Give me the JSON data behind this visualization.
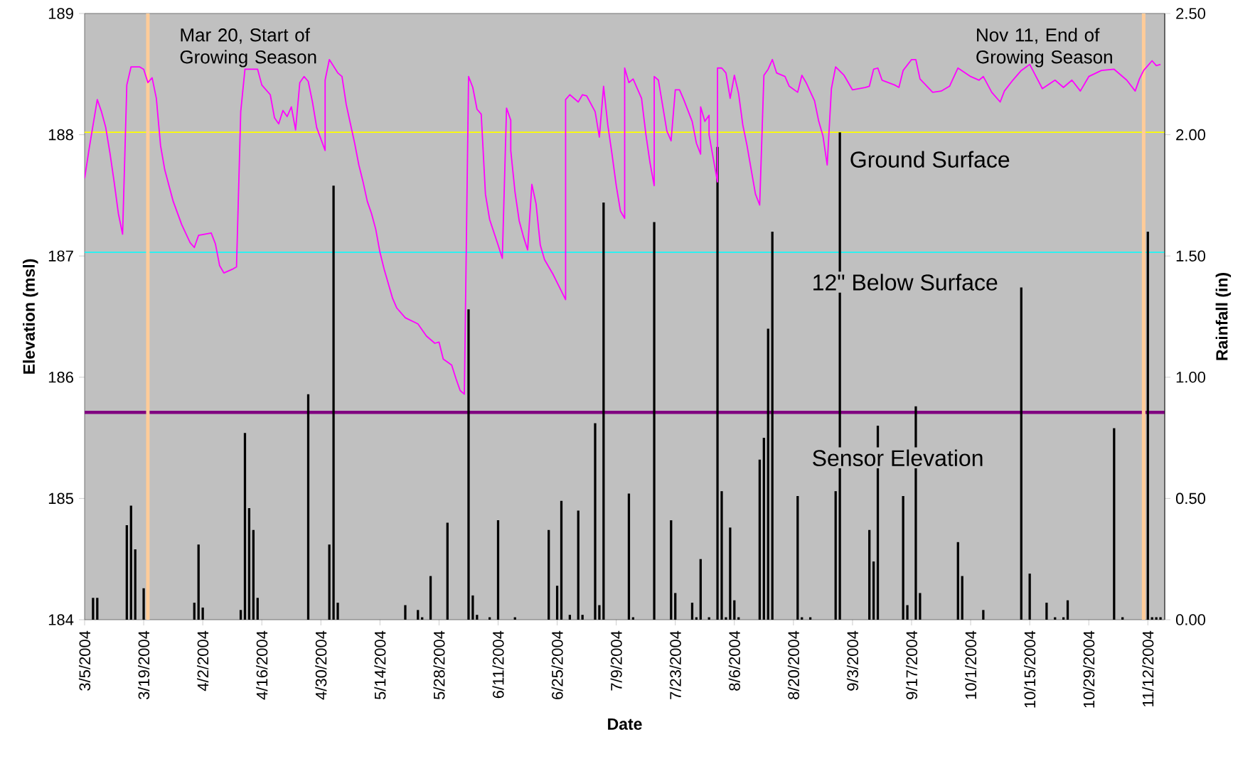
{
  "chart_data": {
    "type": "line",
    "xlabel": "Date",
    "ylabel": "Elevation (msl)",
    "y2label": "Rainfall (in)",
    "xlim": [
      "2004-03-05",
      "2004-11-16"
    ],
    "xticks": [
      {
        "value": "2004-03-05",
        "label": "3/5/2004"
      },
      {
        "value": "2004-03-19",
        "label": "3/19/2004"
      },
      {
        "value": "2004-04-02",
        "label": "4/2/2004"
      },
      {
        "value": "2004-04-16",
        "label": "4/16/2004"
      },
      {
        "value": "2004-04-30",
        "label": "4/30/2004"
      },
      {
        "value": "2004-05-14",
        "label": "5/14/2004"
      },
      {
        "value": "2004-05-28",
        "label": "5/28/2004"
      },
      {
        "value": "2004-06-11",
        "label": "6/11/2004"
      },
      {
        "value": "2004-06-25",
        "label": "6/25/2004"
      },
      {
        "value": "2004-07-09",
        "label": "7/9/2004"
      },
      {
        "value": "2004-07-23",
        "label": "7/23/2004"
      },
      {
        "value": "2004-08-06",
        "label": "8/6/2004"
      },
      {
        "value": "2004-08-20",
        "label": "8/20/2004"
      },
      {
        "value": "2004-09-03",
        "label": "9/3/2004"
      },
      {
        "value": "2004-09-17",
        "label": "9/17/2004"
      },
      {
        "value": "2004-10-01",
        "label": "10/1/2004"
      },
      {
        "value": "2004-10-15",
        "label": "10/15/2004"
      },
      {
        "value": "2004-10-29",
        "label": "10/29/2004"
      },
      {
        "value": "2004-11-12",
        "label": "11/12/2004"
      }
    ],
    "ylim": [
      184,
      189
    ],
    "yticks": [
      184,
      185,
      186,
      187,
      188,
      189
    ],
    "y2lim": [
      0,
      2.5
    ],
    "y2ticks": [
      {
        "value": 0,
        "label": "0.00"
      },
      {
        "value": 0.5,
        "label": "0.50"
      },
      {
        "value": 1,
        "label": "1.00"
      },
      {
        "value": 1.5,
        "label": "1.50"
      },
      {
        "value": 2,
        "label": "2.00"
      },
      {
        "value": 2.5,
        "label": "2.50"
      }
    ],
    "series": [
      {
        "color": "#ff00ff",
        "x": [
          "2004-03-05",
          "2004-03-06",
          "2004-03-07",
          "2004-03-08",
          "2004-03-09",
          "2004-03-10",
          "2004-03-11",
          "2004-03-12",
          "2004-03-13",
          "2004-03-14",
          "2004-03-15",
          "2004-03-16",
          "2004-03-18",
          "2004-03-19",
          "2004-03-20",
          "2004-03-21",
          "2004-03-22",
          "2004-03-23",
          "2004-03-24",
          "2004-03-25",
          "2004-03-26",
          "2004-03-28",
          "2004-03-30",
          "2004-03-31",
          "2004-04-01",
          "2004-04-04",
          "2004-04-05",
          "2004-04-06",
          "2004-04-07",
          "2004-04-09",
          "2004-04-10",
          "2004-04-11",
          "2004-04-12",
          "2004-04-15",
          "2004-04-16",
          "2004-04-18",
          "2004-04-19",
          "2004-04-20",
          "2004-04-21",
          "2004-04-22",
          "2004-04-23",
          "2004-04-24",
          "2004-04-25",
          "2004-04-26",
          "2004-04-27",
          "2004-04-28",
          "2004-04-29",
          "2004-05-01",
          "2004-05-01",
          "2004-05-02",
          "2004-05-04",
          "2004-05-05",
          "2004-05-06",
          "2004-05-07",
          "2004-05-08",
          "2004-05-09",
          "2004-05-10",
          "2004-05-11",
          "2004-05-12",
          "2004-05-13",
          "2004-05-14",
          "2004-05-15",
          "2004-05-16",
          "2004-05-17",
          "2004-05-18",
          "2004-05-20",
          "2004-05-23",
          "2004-05-25",
          "2004-05-27",
          "2004-05-28",
          "2004-05-29",
          "2004-05-31",
          "2004-06-01",
          "2004-06-02",
          "2004-06-03",
          "2004-06-04",
          "2004-06-05",
          "2004-06-06",
          "2004-06-07",
          "2004-06-08",
          "2004-06-09",
          "2004-06-11",
          "2004-06-12",
          "2004-06-13",
          "2004-06-14",
          "2004-06-14",
          "2004-06-15",
          "2004-06-16",
          "2004-06-17",
          "2004-06-18",
          "2004-06-19",
          "2004-06-20",
          "2004-06-21",
          "2004-06-22",
          "2004-06-24",
          "2004-06-26",
          "2004-06-27",
          "2004-06-27",
          "2004-06-28",
          "2004-06-30",
          "2004-07-01",
          "2004-07-02",
          "2004-07-04",
          "2004-07-05",
          "2004-07-06",
          "2004-07-07",
          "2004-07-08",
          "2004-07-09",
          "2004-07-10",
          "2004-07-11",
          "2004-07-11",
          "2004-07-12",
          "2004-07-13",
          "2004-07-15",
          "2004-07-16",
          "2004-07-17",
          "2004-07-18",
          "2004-07-18",
          "2004-07-19",
          "2004-07-20",
          "2004-07-21",
          "2004-07-22",
          "2004-07-23",
          "2004-07-24",
          "2004-07-25",
          "2004-07-27",
          "2004-07-28",
          "2004-07-29",
          "2004-07-29",
          "2004-07-30",
          "2004-07-31",
          "2004-07-31",
          "2004-08-02",
          "2004-08-02",
          "2004-08-03",
          "2004-08-04",
          "2004-08-05",
          "2004-08-06",
          "2004-08-07",
          "2004-08-08",
          "2004-08-09",
          "2004-08-10",
          "2004-08-11",
          "2004-08-12",
          "2004-08-13",
          "2004-08-14",
          "2004-08-15",
          "2004-08-16",
          "2004-08-18",
          "2004-08-19",
          "2004-08-21",
          "2004-08-22",
          "2004-08-23",
          "2004-08-25",
          "2004-08-26",
          "2004-08-27",
          "2004-08-28",
          "2004-08-29",
          "2004-08-30",
          "2004-09-01",
          "2004-09-03",
          "2004-09-06",
          "2004-09-07",
          "2004-09-08",
          "2004-09-09",
          "2004-09-10",
          "2004-09-13",
          "2004-09-14",
          "2004-09-15",
          "2004-09-17",
          "2004-09-18",
          "2004-09-19",
          "2004-09-22",
          "2004-09-24",
          "2004-09-26",
          "2004-09-28",
          "2004-10-01",
          "2004-10-03",
          "2004-10-04",
          "2004-10-06",
          "2004-10-08",
          "2004-10-09",
          "2004-10-11",
          "2004-10-13",
          "2004-10-15",
          "2004-10-18",
          "2004-10-21",
          "2004-10-23",
          "2004-10-25",
          "2004-10-27",
          "2004-10-29",
          "2004-11-01",
          "2004-11-04",
          "2004-11-07",
          "2004-11-09",
          "2004-11-10",
          "2004-11-11",
          "2004-11-13",
          "2004-11-14",
          "2004-11-15"
        ],
        "values": [
          187.64,
          187.87,
          188.08,
          188.29,
          188.19,
          188.06,
          187.85,
          187.61,
          187.35,
          187.18,
          188.41,
          188.56,
          188.56,
          188.54,
          188.43,
          188.47,
          188.3,
          187.91,
          187.71,
          187.58,
          187.45,
          187.26,
          187.11,
          187.07,
          187.17,
          187.19,
          187.1,
          186.92,
          186.86,
          186.89,
          186.91,
          188.19,
          188.54,
          188.54,
          188.41,
          188.33,
          188.14,
          188.09,
          188.2,
          188.15,
          188.23,
          188.04,
          188.43,
          188.48,
          188.44,
          188.27,
          188.06,
          187.87,
          188.45,
          188.62,
          188.51,
          188.48,
          188.25,
          188.09,
          187.93,
          187.75,
          187.61,
          187.45,
          187.35,
          187.22,
          187.03,
          186.89,
          186.77,
          186.65,
          186.57,
          186.49,
          186.44,
          186.34,
          186.28,
          186.29,
          186.15,
          186.1,
          185.99,
          185.89,
          185.86,
          188.48,
          188.39,
          188.21,
          188.17,
          187.51,
          187.3,
          187.09,
          186.98,
          188.22,
          188.12,
          187.87,
          187.53,
          187.29,
          187.16,
          187.05,
          187.59,
          187.43,
          187.09,
          186.97,
          186.85,
          186.71,
          186.64,
          188.29,
          188.33,
          188.27,
          188.33,
          188.32,
          188.19,
          187.98,
          188.4,
          188.08,
          187.84,
          187.58,
          187.37,
          187.31,
          188.55,
          188.43,
          188.46,
          188.3,
          188.01,
          187.77,
          187.58,
          188.48,
          188.45,
          188.24,
          188.03,
          187.95,
          188.37,
          188.37,
          188.29,
          188.11,
          187.93,
          187.84,
          188.23,
          188.11,
          188.16,
          188.0,
          187.61,
          188.55,
          188.55,
          188.51,
          188.3,
          188.49,
          188.34,
          188.08,
          187.91,
          187.71,
          187.51,
          187.42,
          188.49,
          188.54,
          188.62,
          188.51,
          188.48,
          188.4,
          188.35,
          188.49,
          188.43,
          188.28,
          188.11,
          187.99,
          187.75,
          188.38,
          188.56,
          188.49,
          188.37,
          188.39,
          188.4,
          188.54,
          188.55,
          188.45,
          188.41,
          188.39,
          188.53,
          188.62,
          188.62,
          188.46,
          188.35,
          188.36,
          188.4,
          188.55,
          188.48,
          188.45,
          188.48,
          188.35,
          188.27,
          188.36,
          188.45,
          188.53,
          188.58,
          188.38,
          188.45,
          188.39,
          188.45,
          188.36,
          188.48,
          188.53,
          188.54,
          188.45,
          188.36,
          188.46,
          188.53,
          188.61,
          188.57,
          188.58
        ]
      },
      {
        "type": "bar",
        "axis": "y2",
        "color": "#000000",
        "x": [
          "2004-03-07",
          "2004-03-08",
          "2004-03-15",
          "2004-03-16",
          "2004-03-17",
          "2004-03-19",
          "2004-03-31",
          "2004-04-01",
          "2004-04-02",
          "2004-04-11",
          "2004-04-12",
          "2004-04-13",
          "2004-04-14",
          "2004-04-15",
          "2004-04-27",
          "2004-05-02",
          "2004-05-03",
          "2004-05-04",
          "2004-05-20",
          "2004-05-23",
          "2004-05-24",
          "2004-05-26",
          "2004-05-30",
          "2004-06-04",
          "2004-06-05",
          "2004-06-06",
          "2004-06-09",
          "2004-06-11",
          "2004-06-15",
          "2004-06-23",
          "2004-06-25",
          "2004-06-26",
          "2004-06-28",
          "2004-06-30",
          "2004-07-01",
          "2004-07-04",
          "2004-07-05",
          "2004-07-06",
          "2004-07-12",
          "2004-07-13",
          "2004-07-18",
          "2004-07-22",
          "2004-07-23",
          "2004-07-27",
          "2004-07-28",
          "2004-07-29",
          "2004-07-31",
          "2004-08-02",
          "2004-08-03",
          "2004-08-04",
          "2004-08-05",
          "2004-08-06",
          "2004-08-07",
          "2004-08-12",
          "2004-08-13",
          "2004-08-14",
          "2004-08-15",
          "2004-08-21",
          "2004-08-22",
          "2004-08-24",
          "2004-08-30",
          "2004-08-31",
          "2004-09-07",
          "2004-09-08",
          "2004-09-09",
          "2004-09-15",
          "2004-09-16",
          "2004-09-18",
          "2004-09-19",
          "2004-09-28",
          "2004-09-29",
          "2004-10-04",
          "2004-10-13",
          "2004-10-15",
          "2004-10-19",
          "2004-10-21",
          "2004-10-23",
          "2004-10-24",
          "2004-11-04",
          "2004-11-06",
          "2004-11-12",
          "2004-11-13",
          "2004-11-14",
          "2004-11-15"
        ],
        "values": [
          0.09,
          0.09,
          0.39,
          0.47,
          0.29,
          0.13,
          0.07,
          0.31,
          0.05,
          0.04,
          0.77,
          0.46,
          0.37,
          0.09,
          0.93,
          0.31,
          1.79,
          0.07,
          0.06,
          0.04,
          0.01,
          0.18,
          0.4,
          1.28,
          0.1,
          0.02,
          0.01,
          0.41,
          0.01,
          0.37,
          0.14,
          0.49,
          0.02,
          0.45,
          0.02,
          0.81,
          0.06,
          1.72,
          0.52,
          0.01,
          1.64,
          0.41,
          0.11,
          0.07,
          0.01,
          0.25,
          0.01,
          1.95,
          0.53,
          0.01,
          0.38,
          0.08,
          0.01,
          0.66,
          0.75,
          1.2,
          1.6,
          0.51,
          0.01,
          0.01,
          0.53,
          2.01,
          0.37,
          0.24,
          0.8,
          0.51,
          0.06,
          0.88,
          0.11,
          0.32,
          0.18,
          0.04,
          1.37,
          0.19,
          0.07,
          0.01,
          0.01,
          0.08,
          0.79,
          0.01,
          1.6,
          0.01,
          0.01,
          0.01
        ]
      }
    ],
    "ref_lines": [
      {
        "axis": "y",
        "value": 188.02,
        "label": "Ground Surface",
        "color": "#ffff00"
      },
      {
        "axis": "y",
        "value": 187.03,
        "label": "12\" Below Surface",
        "color": "#00ffff"
      },
      {
        "axis": "y",
        "value": 185.71,
        "label": "Sensor Elevation",
        "color": "#800080"
      },
      {
        "axis": "x",
        "value": "2004-03-20",
        "label": "Mar 20, Start of Growing Season",
        "color": "#ffcc99"
      },
      {
        "axis": "x",
        "value": "2004-11-11",
        "label": "Nov 11, End of Growing Season",
        "color": "#ffcc99"
      }
    ]
  }
}
